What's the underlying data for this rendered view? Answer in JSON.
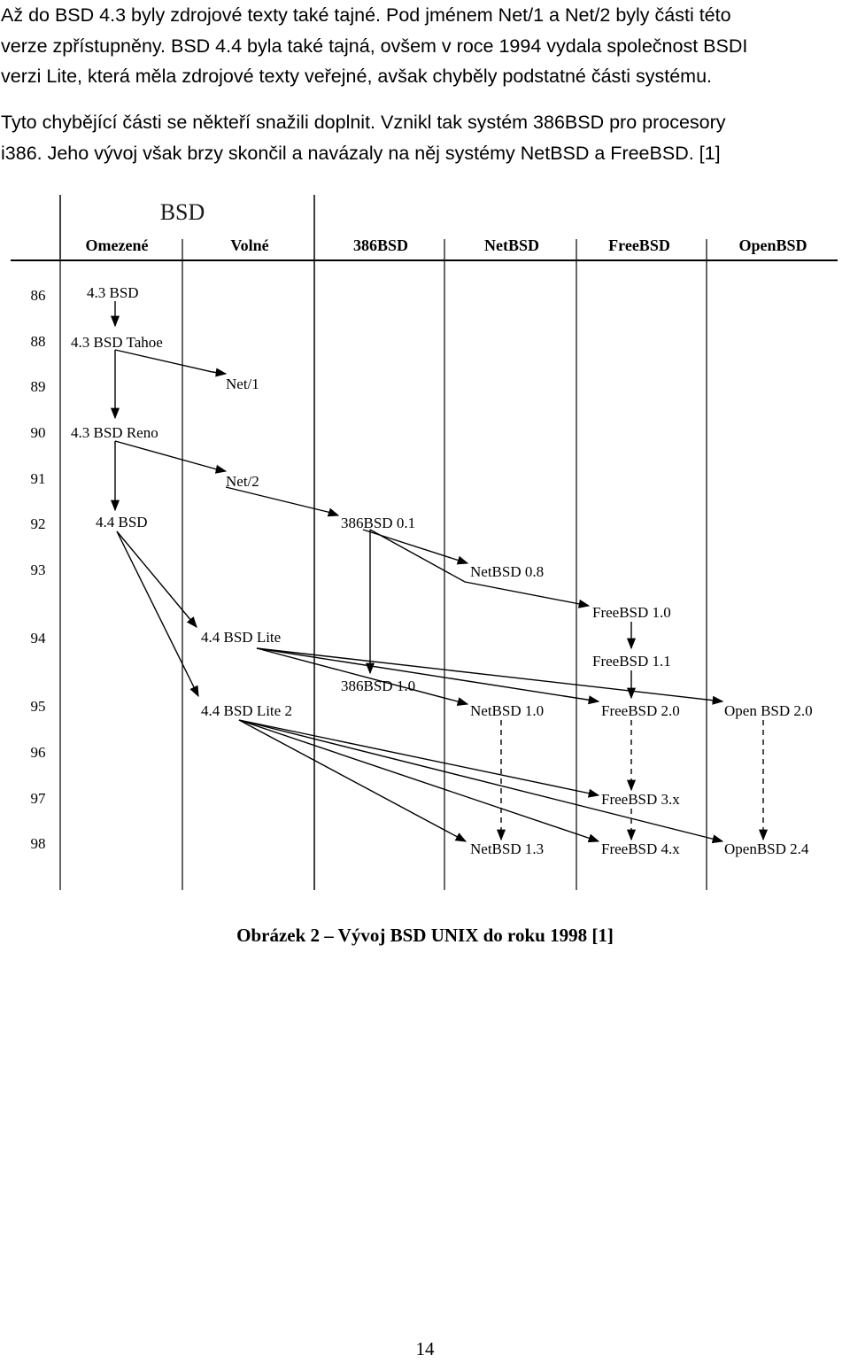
{
  "paragraphs": [
    {
      "lines": [
        "Až do BSD 4.3 byly zdrojové texty také tajné. Pod jménem Net/1 a Net/2 byly části této",
        "verze zpřístupněny. BSD 4.4 byla také tajná, ovšem v roce 1994 vydala společnost BSDI",
        "verzi Lite, která měla zdrojové texty veřejné, avšak chyběly podstatné části systému."
      ]
    },
    {
      "lines": [
        "Tyto chybějící části se někteří snažili doplnit. Vznikl tak systém 386BSD pro procesory",
        "i386. Jeho vývoj však brzy skončil a navázaly na něj systémy NetBSD a FreeBSD. [1]"
      ]
    }
  ],
  "diagram": {
    "group_title": "BSD",
    "columns": [
      "Omezené",
      "Volné",
      "386BSD",
      "NetBSD",
      "FreeBSD",
      "OpenBSD"
    ],
    "years": [
      "86",
      "88",
      "89",
      "90",
      "91",
      "92",
      "93",
      "94",
      "95",
      "96",
      "97",
      "98"
    ],
    "nodes": [
      {
        "id": "n1",
        "label": "4.3 BSD"
      },
      {
        "id": "n2",
        "label": "4.3 BSD Tahoe"
      },
      {
        "id": "n3",
        "label": "Net/1"
      },
      {
        "id": "n4",
        "label": "4.3 BSD Reno"
      },
      {
        "id": "n5",
        "label": "Net/2"
      },
      {
        "id": "n6",
        "label": "4.4 BSD"
      },
      {
        "id": "n7",
        "label": "386BSD 0.1"
      },
      {
        "id": "n8",
        "label": "NetBSD 0.8"
      },
      {
        "id": "n9",
        "label": "FreeBSD 1.0"
      },
      {
        "id": "n10",
        "label": "4.4 BSD Lite"
      },
      {
        "id": "n11",
        "label": "FreeBSD 1.1"
      },
      {
        "id": "n12",
        "label": "386BSD 1.0"
      },
      {
        "id": "n13",
        "label": "4.4 BSD Lite 2"
      },
      {
        "id": "n14",
        "label": "NetBSD 1.0"
      },
      {
        "id": "n15",
        "label": "FreeBSD 2.0"
      },
      {
        "id": "n16",
        "label": "Open BSD 2.0"
      },
      {
        "id": "n17",
        "label": "FreeBSD 3.x"
      },
      {
        "id": "n18",
        "label": "NetBSD 1.3"
      },
      {
        "id": "n19",
        "label": "FreeBSD 4.x"
      },
      {
        "id": "n20",
        "label": "OpenBSD 2.4"
      }
    ]
  },
  "caption": "Obrázek 2 – Vývoj BSD UNIX do roku 1998 [1]",
  "page_number": "14"
}
